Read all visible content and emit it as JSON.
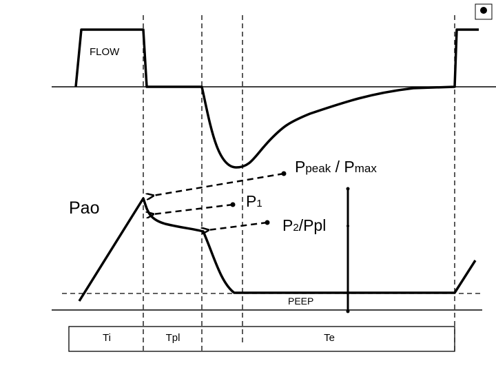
{
  "labels": {
    "flow": "FLOW",
    "pao": "Pao",
    "ppeak": {
      "p1": "P",
      "s1": "peak",
      "p2": " / P",
      "s2": "max"
    },
    "p1": {
      "p": "P",
      "s": "1"
    },
    "p2": {
      "p": "P",
      "s": "2",
      "rest": "/Ppl"
    },
    "peep": "PEEP"
  },
  "phases": {
    "ti": "Ti",
    "tpl": "Tpl",
    "te": "Te"
  }
}
